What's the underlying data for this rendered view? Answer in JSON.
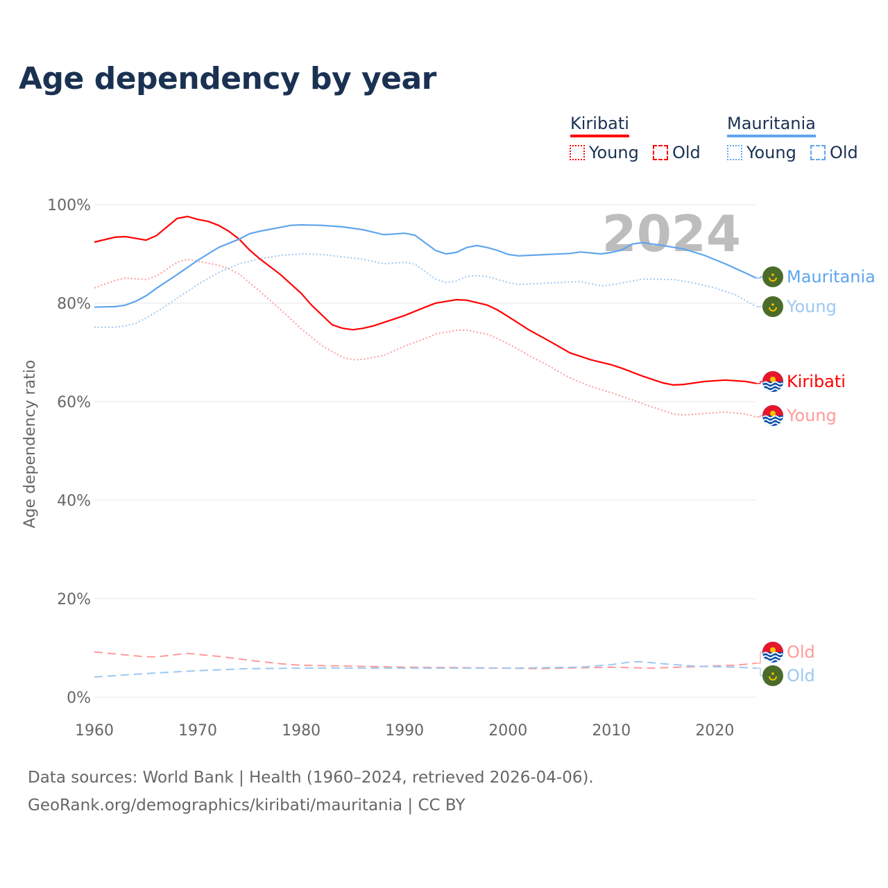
{
  "title": "Age dependency by year",
  "legend": {
    "countries": [
      {
        "name": "Kiribati",
        "color": "#ff0000",
        "young_label": "Young",
        "old_label": "Old"
      },
      {
        "name": "Mauritania",
        "color": "#5ea5ee",
        "young_label": "Young",
        "old_label": "Old"
      }
    ]
  },
  "chart_data": {
    "type": "line",
    "title": "Age dependency by year",
    "xlabel": "",
    "ylabel": "Age dependency ratio",
    "xlim": [
      1960,
      2024
    ],
    "ylim": [
      0,
      100
    ],
    "x_ticks": [
      "1960",
      "1970",
      "1980",
      "1990",
      "2000",
      "2010",
      "2020"
    ],
    "y_ticks": [
      "0%",
      "20%",
      "40%",
      "60%",
      "80%",
      "100%"
    ],
    "grid": true,
    "year_watermark": "2024",
    "series": [
      {
        "name": "Kiribati",
        "label": "Kiribati",
        "style": "solid",
        "color": "#ff0000",
        "points": [
          [
            1960,
            92.4
          ],
          [
            1962,
            93.4
          ],
          [
            1963,
            93.5
          ],
          [
            1965,
            92.8
          ],
          [
            1966,
            93.7
          ],
          [
            1968,
            97.2
          ],
          [
            1969,
            97.6
          ],
          [
            1970,
            97.0
          ],
          [
            1971,
            96.6
          ],
          [
            1972,
            95.8
          ],
          [
            1973,
            94.6
          ],
          [
            1974,
            93.0
          ],
          [
            1975,
            90.8
          ],
          [
            1976,
            89.0
          ],
          [
            1978,
            85.8
          ],
          [
            1980,
            82.0
          ],
          [
            1981,
            79.6
          ],
          [
            1983,
            75.6
          ],
          [
            1984,
            74.9
          ],
          [
            1985,
            74.6
          ],
          [
            1986,
            74.9
          ],
          [
            1987,
            75.4
          ],
          [
            1990,
            77.5
          ],
          [
            1992,
            79.2
          ],
          [
            1993,
            80.0
          ],
          [
            1995,
            80.7
          ],
          [
            1996,
            80.6
          ],
          [
            1998,
            79.6
          ],
          [
            1999,
            78.6
          ],
          [
            2000,
            77.3
          ],
          [
            2002,
            74.6
          ],
          [
            2004,
            72.3
          ],
          [
            2006,
            69.9
          ],
          [
            2008,
            68.5
          ],
          [
            2010,
            67.5
          ],
          [
            2011,
            66.8
          ],
          [
            2013,
            65.2
          ],
          [
            2015,
            63.8
          ],
          [
            2016,
            63.4
          ],
          [
            2017,
            63.5
          ],
          [
            2019,
            64.1
          ],
          [
            2021,
            64.4
          ],
          [
            2023,
            64.1
          ],
          [
            2024,
            63.7
          ]
        ]
      },
      {
        "name": "Kiribati Young",
        "label": "Young",
        "style": "dotted",
        "color": "#ff9a9a",
        "points": [
          [
            1960,
            83.1
          ],
          [
            1962,
            84.6
          ],
          [
            1963,
            85.1
          ],
          [
            1965,
            84.8
          ],
          [
            1966,
            85.5
          ],
          [
            1968,
            88.3
          ],
          [
            1969,
            88.9
          ],
          [
            1972,
            87.7
          ],
          [
            1973,
            87.0
          ],
          [
            1974,
            85.9
          ],
          [
            1976,
            82.4
          ],
          [
            1978,
            78.7
          ],
          [
            1980,
            74.8
          ],
          [
            1982,
            71.4
          ],
          [
            1984,
            69.0
          ],
          [
            1985,
            68.5
          ],
          [
            1986,
            68.6
          ],
          [
            1988,
            69.4
          ],
          [
            1990,
            71.3
          ],
          [
            1992,
            72.8
          ],
          [
            1993,
            73.7
          ],
          [
            1995,
            74.5
          ],
          [
            1996,
            74.5
          ],
          [
            1998,
            73.7
          ],
          [
            1999,
            72.8
          ],
          [
            2000,
            71.8
          ],
          [
            2002,
            69.4
          ],
          [
            2004,
            67.2
          ],
          [
            2006,
            64.8
          ],
          [
            2008,
            63.1
          ],
          [
            2010,
            61.8
          ],
          [
            2012,
            60.4
          ],
          [
            2013,
            59.6
          ],
          [
            2015,
            58.2
          ],
          [
            2016,
            57.5
          ],
          [
            2017,
            57.3
          ],
          [
            2019,
            57.6
          ],
          [
            2021,
            57.9
          ],
          [
            2023,
            57.5
          ],
          [
            2024,
            56.9
          ]
        ]
      },
      {
        "name": "Mauritania",
        "label": "Mauritania",
        "style": "solid",
        "color": "#5ea5ee",
        "points": [
          [
            1960,
            79.2
          ],
          [
            1962,
            79.3
          ],
          [
            1963,
            79.6
          ],
          [
            1964,
            80.4
          ],
          [
            1965,
            81.5
          ],
          [
            1966,
            83.0
          ],
          [
            1968,
            85.8
          ],
          [
            1970,
            88.7
          ],
          [
            1972,
            91.3
          ],
          [
            1974,
            93.0
          ],
          [
            1975,
            94.1
          ],
          [
            1976,
            94.6
          ],
          [
            1978,
            95.4
          ],
          [
            1979,
            95.8
          ],
          [
            1980,
            95.9
          ],
          [
            1982,
            95.8
          ],
          [
            1984,
            95.5
          ],
          [
            1986,
            94.9
          ],
          [
            1988,
            93.9
          ],
          [
            1990,
            94.2
          ],
          [
            1991,
            93.8
          ],
          [
            1993,
            90.7
          ],
          [
            1994,
            90.0
          ],
          [
            1995,
            90.3
          ],
          [
            1996,
            91.3
          ],
          [
            1997,
            91.7
          ],
          [
            1998,
            91.3
          ],
          [
            1999,
            90.7
          ],
          [
            2000,
            89.9
          ],
          [
            2001,
            89.6
          ],
          [
            2004,
            89.9
          ],
          [
            2006,
            90.1
          ],
          [
            2007,
            90.4
          ],
          [
            2009,
            90.0
          ],
          [
            2010,
            90.3
          ],
          [
            2011,
            90.8
          ],
          [
            2012,
            92.0
          ],
          [
            2013,
            92.3
          ],
          [
            2015,
            91.7
          ],
          [
            2017,
            91.0
          ],
          [
            2019,
            89.7
          ],
          [
            2021,
            88.0
          ],
          [
            2023,
            86.1
          ],
          [
            2024,
            85.1
          ]
        ]
      },
      {
        "name": "Mauritania Young",
        "label": "Young",
        "style": "dotted",
        "color": "#9cc8f2",
        "points": [
          [
            1960,
            75.1
          ],
          [
            1962,
            75.1
          ],
          [
            1963,
            75.4
          ],
          [
            1964,
            75.9
          ],
          [
            1965,
            77.0
          ],
          [
            1966,
            78.2
          ],
          [
            1968,
            81.0
          ],
          [
            1970,
            83.8
          ],
          [
            1972,
            86.2
          ],
          [
            1974,
            88.0
          ],
          [
            1976,
            89.0
          ],
          [
            1978,
            89.7
          ],
          [
            1980,
            90.0
          ],
          [
            1982,
            89.9
          ],
          [
            1984,
            89.4
          ],
          [
            1986,
            88.9
          ],
          [
            1988,
            88.0
          ],
          [
            1990,
            88.3
          ],
          [
            1991,
            87.9
          ],
          [
            1993,
            84.9
          ],
          [
            1994,
            84.2
          ],
          [
            1995,
            84.5
          ],
          [
            1996,
            85.4
          ],
          [
            1997,
            85.6
          ],
          [
            1998,
            85.4
          ],
          [
            2000,
            84.2
          ],
          [
            2001,
            83.8
          ],
          [
            2004,
            84.1
          ],
          [
            2007,
            84.4
          ],
          [
            2009,
            83.5
          ],
          [
            2010,
            83.7
          ],
          [
            2012,
            84.5
          ],
          [
            2013,
            84.9
          ],
          [
            2016,
            84.8
          ],
          [
            2018,
            84.1
          ],
          [
            2020,
            83.1
          ],
          [
            2022,
            81.7
          ],
          [
            2024,
            79.3
          ]
        ]
      },
      {
        "name": "Kiribati Old",
        "label": "Old",
        "style": "dashed",
        "color": "#ff9a9a",
        "points": [
          [
            1960,
            9.2
          ],
          [
            1965,
            8.2
          ],
          [
            1966,
            8.2
          ],
          [
            1969,
            8.9
          ],
          [
            1972,
            8.3
          ],
          [
            1975,
            7.5
          ],
          [
            1978,
            6.8
          ],
          [
            1980,
            6.5
          ],
          [
            1990,
            6.1
          ],
          [
            2000,
            5.9
          ],
          [
            2003,
            5.8
          ],
          [
            2010,
            6.1
          ],
          [
            2014,
            5.9
          ],
          [
            2018,
            6.2
          ],
          [
            2022,
            6.5
          ],
          [
            2024,
            6.9
          ]
        ]
      },
      {
        "name": "Mauritania Old",
        "label": "Old",
        "style": "dashed",
        "color": "#9cc8f2",
        "points": [
          [
            1960,
            4.1
          ],
          [
            1965,
            4.8
          ],
          [
            1970,
            5.4
          ],
          [
            1975,
            5.8
          ],
          [
            1980,
            5.9
          ],
          [
            1990,
            5.9
          ],
          [
            2000,
            5.9
          ],
          [
            2007,
            6.1
          ],
          [
            2010,
            6.6
          ],
          [
            2012,
            7.2
          ],
          [
            2013,
            7.2
          ],
          [
            2015,
            6.8
          ],
          [
            2018,
            6.3
          ],
          [
            2022,
            6.1
          ],
          [
            2024,
            5.9
          ]
        ]
      }
    ]
  },
  "sources": {
    "line1": "Data sources: World Bank | Health (1960–2024, retrieved 2026-04-06).",
    "line2": "GeoRank.org/demographics/kiribati/mauritania | CC BY"
  }
}
